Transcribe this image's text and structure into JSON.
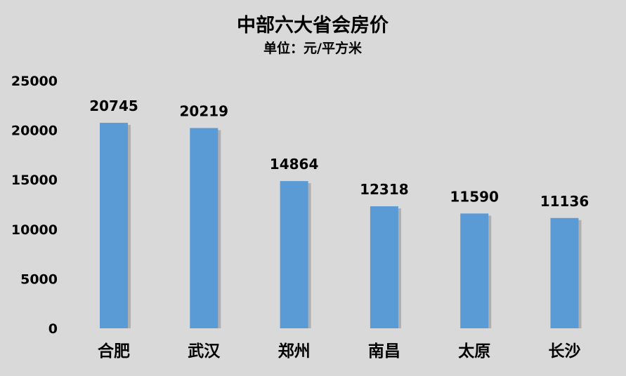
{
  "chart_data": {
    "type": "bar",
    "title": "中部六大省会房价",
    "subtitle": "单位：元/平方米",
    "categories": [
      "合肥",
      "武汉",
      "郑州",
      "南昌",
      "太原",
      "长沙"
    ],
    "values": [
      20745,
      20219,
      14864,
      12318,
      11590,
      11136
    ],
    "data_labels": [
      "20745",
      "20219",
      "14864",
      "12318",
      "11590",
      "11136"
    ],
    "ylim": [
      0,
      25000
    ],
    "yticks": [
      "0",
      "5000",
      "10000",
      "15000",
      "20000",
      "25000"
    ],
    "xlabel": "",
    "ylabel": "",
    "grid": false,
    "legend": "none",
    "colors": {
      "bar": "#5b9bd5",
      "shadow": "#8c8c8c",
      "background": "#d9d9d9"
    }
  }
}
